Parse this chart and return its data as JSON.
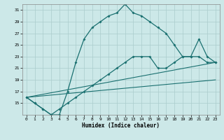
{
  "xlabel": "Humidex (Indice chaleur)",
  "xlim": [
    -0.5,
    23.5
  ],
  "ylim": [
    13,
    32
  ],
  "yticks": [
    15,
    17,
    19,
    21,
    23,
    25,
    27,
    29,
    31
  ],
  "xticks": [
    0,
    1,
    2,
    3,
    4,
    5,
    6,
    7,
    8,
    9,
    10,
    11,
    12,
    13,
    14,
    15,
    16,
    17,
    18,
    19,
    20,
    21,
    22,
    23
  ],
  "bg_color": "#cce8e8",
  "grid_color": "#aacccc",
  "line_color": "#1a7070",
  "line1_x": [
    0,
    1,
    2,
    3,
    4,
    5,
    6,
    7,
    8,
    9,
    10,
    11,
    12,
    13,
    14,
    15,
    16,
    17,
    18,
    19,
    20,
    21,
    22,
    23
  ],
  "line1_y": [
    16,
    15,
    14,
    13,
    13,
    17,
    22,
    26,
    28,
    29,
    30,
    30.5,
    32,
    30.5,
    30,
    29,
    28,
    27,
    25,
    23,
    23,
    26,
    23,
    22
  ],
  "line2_x": [
    0,
    1,
    2,
    3,
    4,
    5,
    6,
    7,
    8,
    9,
    10,
    11,
    12,
    13,
    14,
    15,
    16,
    17,
    18,
    19,
    20,
    21,
    22,
    23
  ],
  "line2_y": [
    16,
    15,
    14,
    13,
    14,
    15,
    16,
    17,
    18,
    19,
    20,
    21,
    22,
    23,
    23,
    23,
    21,
    21,
    22,
    23,
    23,
    23,
    22,
    22
  ],
  "line3_x": [
    0,
    23
  ],
  "line3_y": [
    16,
    22
  ],
  "line4_x": [
    0,
    23
  ],
  "line4_y": [
    16,
    19
  ]
}
